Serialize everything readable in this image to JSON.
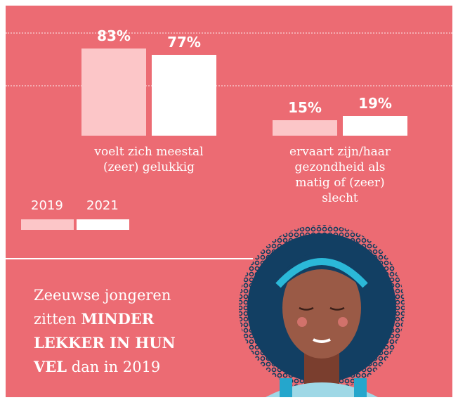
{
  "chart_data": {
    "type": "bar",
    "categories": [
      "voelt zich meestal (zeer) gelukkig",
      "ervaart zijn/haar gezondheid als matig of (zeer) slecht"
    ],
    "series": [
      {
        "name": "2019",
        "color": "#fcc6c8",
        "values": [
          83,
          15
        ],
        "value_labels": [
          "83%",
          "15%"
        ]
      },
      {
        "name": "2021",
        "color": "#ffffff",
        "values": [
          77,
          19
        ],
        "value_labels": [
          "77%",
          "19%"
        ]
      }
    ],
    "ylim": [
      0,
      100
    ],
    "annotation": [
      "Zeeuwse jongeren zitten",
      "MINDER LEKKER IN HUN VEL",
      "dan in 2019"
    ]
  }
}
